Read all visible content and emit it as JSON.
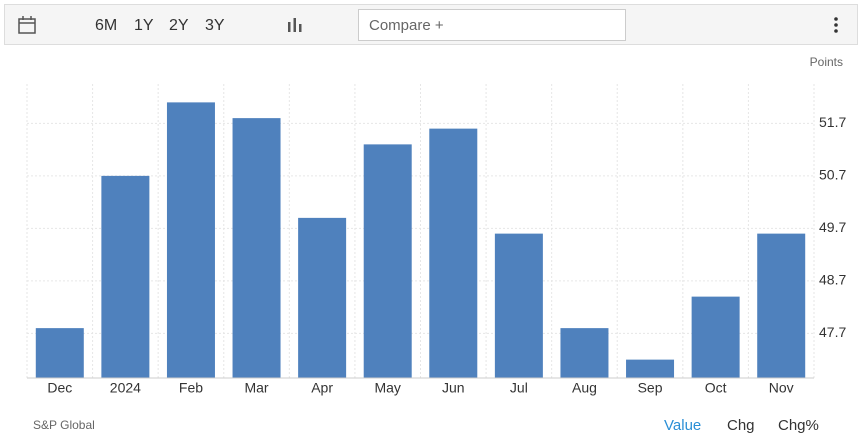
{
  "toolbar": {
    "ranges": [
      "6M",
      "1Y",
      "2Y",
      "3Y"
    ],
    "compare": "Compare +"
  },
  "chart_data": {
    "type": "bar",
    "unit_label": "Points",
    "categories": [
      "Dec",
      "2024",
      "Feb",
      "Mar",
      "Apr",
      "May",
      "Jun",
      "Jul",
      "Aug",
      "Sep",
      "Oct",
      "Nov"
    ],
    "values": [
      47.8,
      50.7,
      52.1,
      51.8,
      49.9,
      51.3,
      51.6,
      49.6,
      47.8,
      47.2,
      48.4,
      49.6
    ],
    "color": "#4f81bd",
    "ylim": [
      46.85,
      52.45
    ],
    "yticks": [
      47.7,
      48.7,
      49.7,
      50.7,
      51.7
    ],
    "grid": true
  },
  "footer": {
    "source": "S&P Global",
    "tabs": [
      "Value",
      "Chg",
      "Chg%"
    ]
  }
}
